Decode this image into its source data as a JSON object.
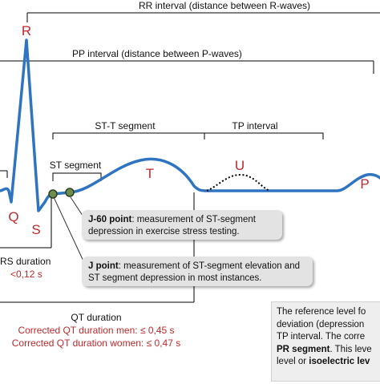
{
  "colors": {
    "wave": "#2f74c0",
    "label_red": "#c0282b",
    "bracket": "#000000",
    "point_fill": "#6b8e4e",
    "callout_bg": "#e3e3e3"
  },
  "waves": {
    "r": "R",
    "q": "Q",
    "s": "S",
    "t": "T",
    "u": "U",
    "p": "P"
  },
  "intervals": {
    "rr": "RR interval (distance between R-waves)",
    "pp": "PP interval (distance between P-waves)",
    "st_t": "ST-T segment",
    "tp": "TP interval",
    "st_segment": "ST segment"
  },
  "qrs": {
    "label": "RS duration",
    "value": "<0,12 s"
  },
  "qt": {
    "label": "QT duration",
    "men": "Corrected QT duration men: ≤ 0,45 s",
    "women": "Corrected QT duration women: ≤ 0,47 s"
  },
  "callouts": {
    "j60_bold": "J-60 point",
    "j60_text1": ": measurement of ST-segment",
    "j60_text2": "depression in exercise stress testing.",
    "j_bold": "J point",
    "j_text1": ": measurement of ST-segment elevation and",
    "j_text2": "ST segment depression in most instances."
  },
  "reference": {
    "line1": "The reference level fo",
    "line2": "deviation (depression",
    "line3": "TP interval. The corre",
    "line4_bold": "PR segment",
    "line4_rest": ". This leve",
    "line5_pre": "level or ",
    "line5_bold": "isoelectric lev"
  }
}
